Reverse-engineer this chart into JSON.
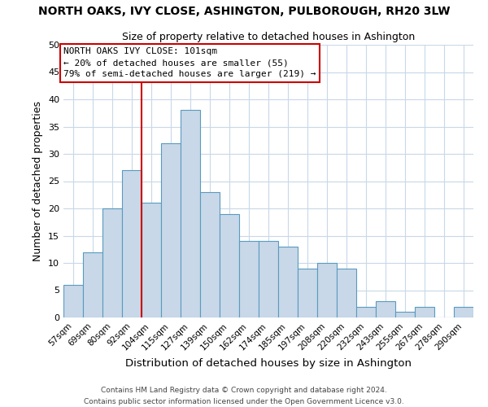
{
  "title": "NORTH OAKS, IVY CLOSE, ASHINGTON, PULBOROUGH, RH20 3LW",
  "subtitle": "Size of property relative to detached houses in Ashington",
  "xlabel": "Distribution of detached houses by size in Ashington",
  "ylabel": "Number of detached properties",
  "bin_labels": [
    "57sqm",
    "69sqm",
    "80sqm",
    "92sqm",
    "104sqm",
    "115sqm",
    "127sqm",
    "139sqm",
    "150sqm",
    "162sqm",
    "174sqm",
    "185sqm",
    "197sqm",
    "208sqm",
    "220sqm",
    "232sqm",
    "243sqm",
    "255sqm",
    "267sqm",
    "278sqm",
    "290sqm"
  ],
  "bar_heights": [
    6,
    12,
    20,
    27,
    21,
    32,
    38,
    23,
    19,
    14,
    14,
    13,
    9,
    10,
    9,
    2,
    3,
    1,
    2,
    0,
    2
  ],
  "bar_color": "#c8d8e8",
  "bar_edge_color": "#5a9abf",
  "vline_x_index": 4,
  "vline_color": "#cc0000",
  "annotation_text": "NORTH OAKS IVY CLOSE: 101sqm\n← 20% of detached houses are smaller (55)\n79% of semi-detached houses are larger (219) →",
  "annotation_box_color": "#ffffff",
  "annotation_box_edge_color": "#cc0000",
  "ylim": [
    0,
    50
  ],
  "yticks": [
    0,
    5,
    10,
    15,
    20,
    25,
    30,
    35,
    40,
    45,
    50
  ],
  "footer_line1": "Contains HM Land Registry data © Crown copyright and database right 2024.",
  "footer_line2": "Contains public sector information licensed under the Open Government Licence v3.0.",
  "background_color": "#ffffff",
  "grid_color": "#c8d8e8"
}
